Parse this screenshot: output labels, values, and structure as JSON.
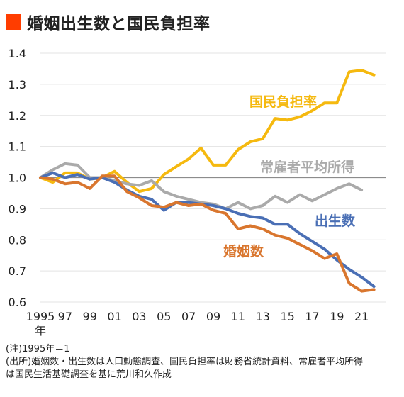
{
  "header": {
    "title": "婚姻出生数と国民負担率"
  },
  "notes": {
    "line1": "(注)1995年＝1",
    "line2": "(出所)婚姻数・出生数は人口動態調査、国民負担率は財務省統計資料、常雇者平均所得",
    "line3": "は国民生活基礎調査を基に荒川和久作成"
  },
  "chart_data": {
    "type": "line",
    "ylim": [
      0.6,
      1.4
    ],
    "yticks": [
      0.6,
      0.7,
      0.8,
      0.9,
      1.0,
      1.1,
      1.2,
      1.3,
      1.4
    ],
    "ytick_labels": [
      "0.6",
      "0.7",
      "0.8",
      "0.9",
      "1.0",
      "1.1",
      "1.2",
      "1.3",
      "1.4"
    ],
    "xlim": [
      1995,
      2023
    ],
    "xticks": [
      1995,
      1997,
      1999,
      2001,
      2003,
      2005,
      2007,
      2009,
      2011,
      2013,
      2015,
      2017,
      2019,
      2021
    ],
    "xtick_labels": [
      "1995",
      "97",
      "99",
      "01",
      "03",
      "05",
      "07",
      "09",
      "11",
      "13",
      "15",
      "17",
      "19",
      "21"
    ],
    "xaxis_unit": "年",
    "reference_line": 1.0,
    "grid": "horizontal",
    "series": [
      {
        "name": "国民負担率",
        "color": "#f5b90f",
        "x": [
          1995,
          1996,
          1997,
          1998,
          1999,
          2000,
          2001,
          2002,
          2003,
          2004,
          2005,
          2006,
          2007,
          2008,
          2009,
          2010,
          2011,
          2012,
          2013,
          2014,
          2015,
          2016,
          2017,
          2018,
          2019,
          2020,
          2021,
          2022
        ],
        "values": [
          1.0,
          0.985,
          1.015,
          1.015,
          0.995,
          1.0,
          1.02,
          0.985,
          0.955,
          0.965,
          1.01,
          1.035,
          1.06,
          1.095,
          1.04,
          1.04,
          1.09,
          1.115,
          1.125,
          1.19,
          1.185,
          1.195,
          1.215,
          1.24,
          1.24,
          1.34,
          1.345,
          1.33
        ]
      },
      {
        "name": "常雇者平均所得",
        "color": "#aaaaaa",
        "x": [
          1995,
          1996,
          1997,
          1998,
          1999,
          2000,
          2001,
          2002,
          2003,
          2004,
          2005,
          2006,
          2007,
          2008,
          2009,
          2010,
          2011,
          2012,
          2013,
          2014,
          2015,
          2016,
          2017,
          2018,
          2019,
          2020,
          2021
        ],
        "values": [
          1.0,
          1.025,
          1.045,
          1.04,
          1.0,
          1.0,
          0.99,
          0.98,
          0.975,
          0.99,
          0.955,
          0.94,
          0.93,
          0.92,
          0.915,
          0.9,
          0.92,
          0.9,
          0.91,
          0.94,
          0.92,
          0.945,
          0.925,
          0.945,
          0.965,
          0.98,
          0.96
        ]
      },
      {
        "name": "出生数",
        "color": "#4a6fb5",
        "x": [
          1995,
          1996,
          1997,
          1998,
          1999,
          2000,
          2001,
          2002,
          2003,
          2004,
          2005,
          2006,
          2007,
          2008,
          2009,
          2010,
          2011,
          2012,
          2013,
          2014,
          2015,
          2016,
          2017,
          2018,
          2019,
          2020,
          2021,
          2022
        ],
        "values": [
          1.0,
          1.015,
          1.0,
          1.01,
          0.995,
          1.0,
          0.985,
          0.96,
          0.94,
          0.93,
          0.895,
          0.92,
          0.92,
          0.915,
          0.91,
          0.9,
          0.885,
          0.875,
          0.87,
          0.85,
          0.85,
          0.82,
          0.795,
          0.77,
          0.735,
          0.705,
          0.68,
          0.65
        ]
      },
      {
        "name": "婚姻数",
        "color": "#d9762e",
        "x": [
          1995,
          1996,
          1997,
          1998,
          1999,
          2000,
          2001,
          2002,
          2003,
          2004,
          2005,
          2006,
          2007,
          2008,
          2009,
          2010,
          2011,
          2012,
          2013,
          2014,
          2015,
          2016,
          2017,
          2018,
          2019,
          2020,
          2021,
          2022
        ],
        "values": [
          1.0,
          0.995,
          0.98,
          0.985,
          0.965,
          1.005,
          1.005,
          0.955,
          0.935,
          0.91,
          0.905,
          0.92,
          0.91,
          0.915,
          0.895,
          0.885,
          0.835,
          0.845,
          0.835,
          0.815,
          0.805,
          0.785,
          0.765,
          0.74,
          0.755,
          0.66,
          0.635,
          0.64
        ]
      }
    ],
    "labels": [
      {
        "text": "国民負担率",
        "series": 0
      },
      {
        "text": "常雇者平均所得",
        "series": 1
      },
      {
        "text": "出生数",
        "series": 2
      },
      {
        "text": "婚姻数",
        "series": 3
      }
    ]
  }
}
